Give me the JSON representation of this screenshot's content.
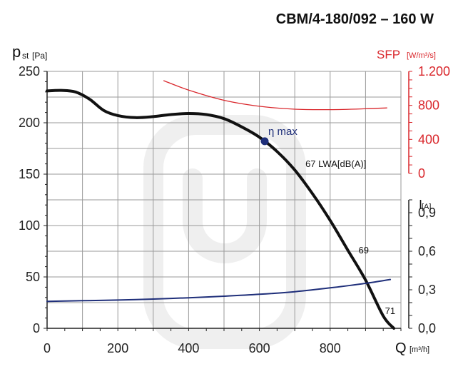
{
  "chart_data": {
    "type": "line",
    "title": "CBM/4-180/092 – 160 W",
    "x_axis": {
      "label_main": "Q",
      "label_unit": "[m³/h]",
      "ticks": [
        "0",
        "200",
        "400",
        "600",
        "800"
      ],
      "range": [
        0,
        1000
      ]
    },
    "y_axis_left": {
      "label_main": "p",
      "label_sub": "st",
      "label_unit": "[Pa]",
      "ticks": [
        "0",
        "50",
        "100",
        "150",
        "200",
        "250"
      ],
      "range": [
        0,
        250
      ]
    },
    "y_axis_sfp": {
      "label_main": "SFP",
      "label_unit": "[W/m³/s]",
      "ticks": [
        "0",
        "400",
        "800",
        "1.200"
      ],
      "range": [
        0,
        1200
      ]
    },
    "y_axis_current": {
      "label_main": "I",
      "label_unit": "[A]",
      "ticks": [
        "0,0",
        "0,3",
        "0,6",
        "0,9"
      ],
      "range": [
        0,
        1.0
      ]
    },
    "series": [
      {
        "key": "pressure",
        "color": "#111111",
        "axis": "left",
        "points": [
          [
            0,
            231
          ],
          [
            40,
            231.5
          ],
          [
            80,
            230
          ],
          [
            120,
            223
          ],
          [
            160,
            212
          ],
          [
            200,
            207
          ],
          [
            250,
            205
          ],
          [
            300,
            206
          ],
          [
            350,
            208
          ],
          [
            400,
            209
          ],
          [
            450,
            208
          ],
          [
            500,
            204
          ],
          [
            550,
            196
          ],
          [
            600,
            186
          ],
          [
            650,
            172
          ],
          [
            700,
            154
          ],
          [
            750,
            131
          ],
          [
            800,
            105
          ],
          [
            850,
            76
          ],
          [
            900,
            47
          ],
          [
            950,
            12
          ],
          [
            980,
            0
          ]
        ]
      },
      {
        "key": "sfp",
        "color": "#d9262b",
        "axis": "sfp",
        "points": [
          [
            330,
            1090
          ],
          [
            400,
            980
          ],
          [
            500,
            860
          ],
          [
            600,
            790
          ],
          [
            700,
            755
          ],
          [
            800,
            750
          ],
          [
            900,
            760
          ],
          [
            960,
            770
          ]
        ]
      },
      {
        "key": "current",
        "color": "#1f2f7a",
        "axis": "current",
        "points": [
          [
            0,
            0.21
          ],
          [
            100,
            0.215
          ],
          [
            200,
            0.22
          ],
          [
            300,
            0.228
          ],
          [
            400,
            0.238
          ],
          [
            500,
            0.25
          ],
          [
            600,
            0.265
          ],
          [
            700,
            0.285
          ],
          [
            800,
            0.315
          ],
          [
            900,
            0.35
          ],
          [
            970,
            0.38
          ]
        ]
      }
    ],
    "marker": {
      "label": "η max",
      "x": 615,
      "y": 182,
      "color": "#1f2f7a"
    },
    "annotations": [
      {
        "text": "67 LWA[dB(A)]",
        "x": 730,
        "y": 157
      },
      {
        "text": "69",
        "x": 880,
        "y": 73
      },
      {
        "text": "71",
        "x": 955,
        "y": 14
      }
    ],
    "grid": true
  }
}
